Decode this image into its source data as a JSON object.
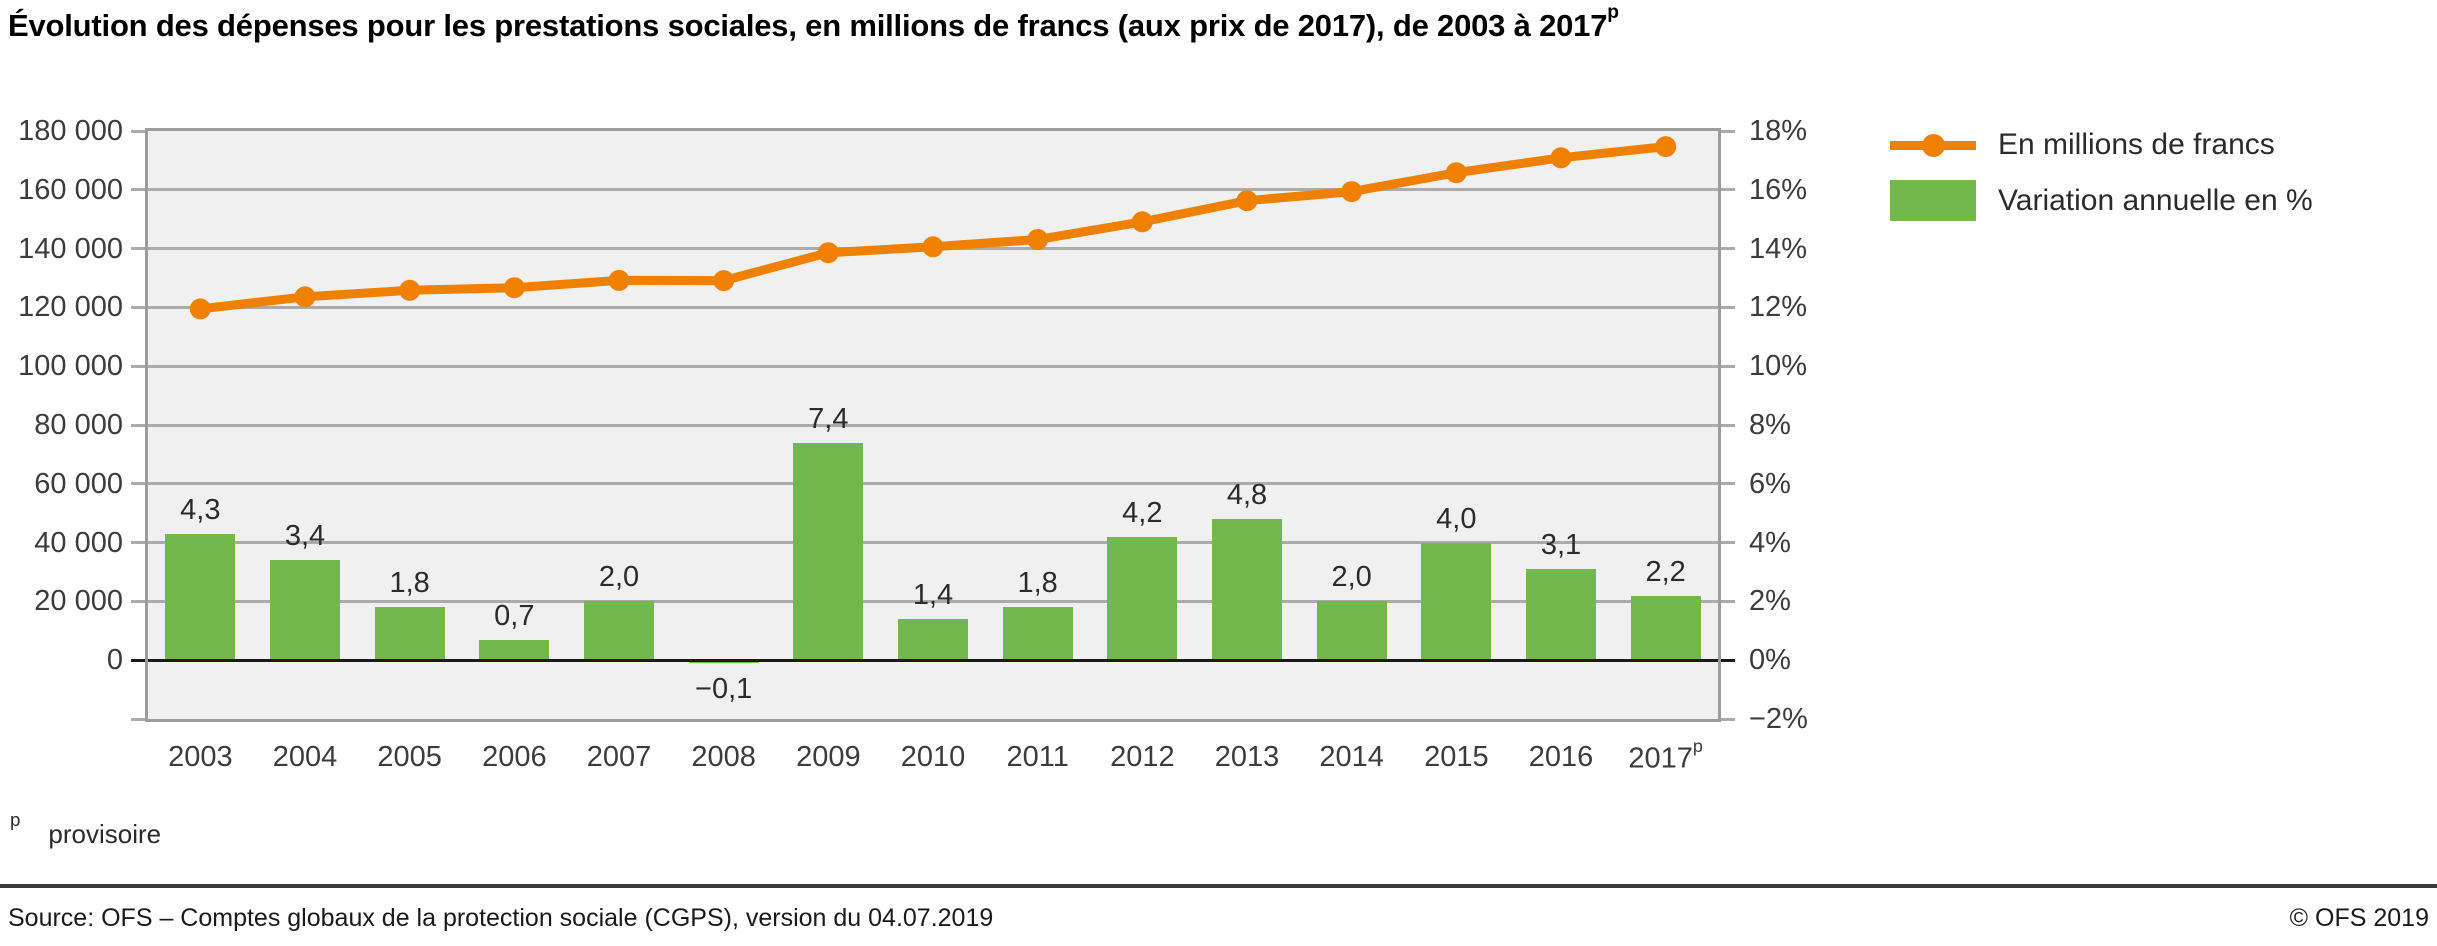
{
  "title": {
    "text": "Évolution des dépenses pour les prestations sociales, en millions de francs (aux prix de 2017), de 2003 à 2017",
    "superscript": "p"
  },
  "legend": [
    {
      "label": "En millions de francs",
      "type": "line",
      "color": "#f08100"
    },
    {
      "label": "Variation annuelle en %",
      "type": "bar",
      "color": "#72b84d"
    }
  ],
  "footnote": {
    "marker": "p",
    "text": "provisoire"
  },
  "footer": {
    "source": "Source: OFS – Comptes globaux de la protection sociale (CGPS), version du 04.07.2019",
    "copyright": "© OFS 2019"
  },
  "chart_data": {
    "type": "combo-line-bar",
    "categories": [
      "2003",
      "2004",
      "2005",
      "2006",
      "2007",
      "2008",
      "2009",
      "2010",
      "2011",
      "2012",
      "2013",
      "2014",
      "2015",
      "2016",
      "2017"
    ],
    "last_category_superscript": "p",
    "series": [
      {
        "name": "En millions de francs",
        "type": "line",
        "axis": "left",
        "color": "#f08100",
        "values": [
          119500,
          123600,
          125800,
          126700,
          129200,
          129100,
          138600,
          140600,
          143100,
          149100,
          156300,
          159400,
          165800,
          170900,
          174700
        ]
      },
      {
        "name": "Variation annuelle en %",
        "type": "bar",
        "axis": "right",
        "color": "#72b84d",
        "values": [
          4.3,
          3.4,
          1.8,
          0.7,
          2.0,
          -0.1,
          7.4,
          1.4,
          1.8,
          4.2,
          4.8,
          2.0,
          4.0,
          3.1,
          2.2
        ],
        "labels": [
          "4,3",
          "3,4",
          "1,8",
          "0,7",
          "2,0",
          "−0,1",
          "7,4",
          "1,4",
          "1,8",
          "4,2",
          "4,8",
          "2,0",
          "4,0",
          "3,1",
          "2,2"
        ]
      }
    ],
    "left_axis": {
      "min": -20000,
      "max": 180000,
      "ticks": [
        "180 000",
        "160 000",
        "140 000",
        "120 000",
        "100 000",
        "80 000",
        "60 000",
        "40 000",
        "20 000",
        "0"
      ]
    },
    "right_axis": {
      "min": -2,
      "max": 18,
      "ticks": [
        "18%",
        "16%",
        "14%",
        "12%",
        "10%",
        "8%",
        "6%",
        "4%",
        "2%",
        "0%",
        "−2%"
      ]
    },
    "grid": true,
    "plot_background": "#f0f0f0",
    "gridline_color": "#ababab",
    "frame_color": "#9c9c9c",
    "zero_line_color": "#1a1a1a",
    "legend_position": "top-right"
  }
}
